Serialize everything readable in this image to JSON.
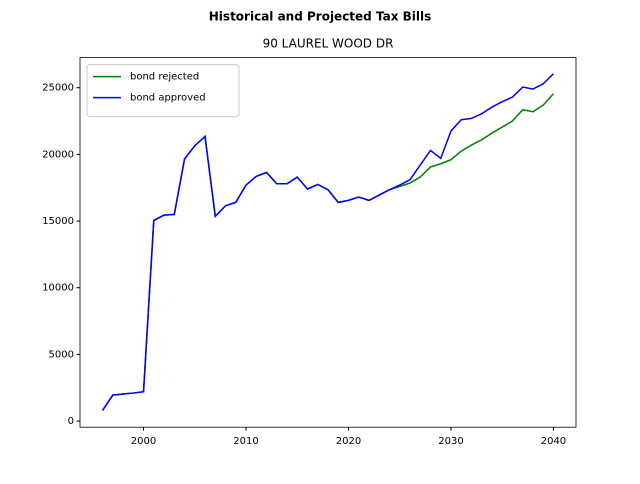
{
  "chart_data": {
    "type": "line",
    "title": "Historical and Projected Tax Bills",
    "subtitle": "90 LAUREL WOOD DR",
    "x": [
      1996,
      1997,
      1998,
      1999,
      2000,
      2001,
      2002,
      2003,
      2004,
      2005,
      2006,
      2007,
      2008,
      2009,
      2010,
      2011,
      2012,
      2013,
      2014,
      2015,
      2016,
      2017,
      2018,
      2019,
      2020,
      2021,
      2022,
      2023,
      2024,
      2025,
      2026,
      2027,
      2028,
      2029,
      2030,
      2031,
      2032,
      2033,
      2034,
      2035,
      2036,
      2037,
      2038,
      2039,
      2040
    ],
    "series": [
      {
        "name": "bond rejected",
        "color": "#008000",
        "values": [
          800,
          1950,
          2030,
          2100,
          2200,
          15050,
          15450,
          15500,
          19650,
          20650,
          21350,
          15350,
          16150,
          16400,
          17700,
          18350,
          18650,
          17800,
          17800,
          18300,
          17400,
          17750,
          17350,
          16400,
          16550,
          16800,
          16550,
          16950,
          17350,
          17600,
          17850,
          18300,
          19050,
          19300,
          19600,
          20250,
          20700,
          21100,
          21600,
          22050,
          22500,
          23350,
          23200,
          23700,
          24550
        ]
      },
      {
        "name": "bond approved",
        "color": "#0000ff",
        "values": [
          800,
          1950,
          2030,
          2100,
          2200,
          15050,
          15450,
          15500,
          19650,
          20650,
          21350,
          15350,
          16150,
          16400,
          17700,
          18350,
          18650,
          17800,
          17800,
          18300,
          17400,
          17750,
          17350,
          16400,
          16550,
          16800,
          16550,
          16950,
          17350,
          17700,
          18100,
          19200,
          20300,
          19700,
          21750,
          22600,
          22700,
          23050,
          23550,
          23950,
          24300,
          25050,
          24900,
          25300,
          26050
        ]
      }
    ],
    "xlim": [
      1993.8,
      2042.2
    ],
    "xticks": [
      2000,
      2010,
      2020,
      2030,
      2040
    ],
    "ylim": [
      -460,
      27260
    ],
    "yticks": [
      0,
      5000,
      10000,
      15000,
      20000,
      25000
    ],
    "legend": "upper left"
  }
}
